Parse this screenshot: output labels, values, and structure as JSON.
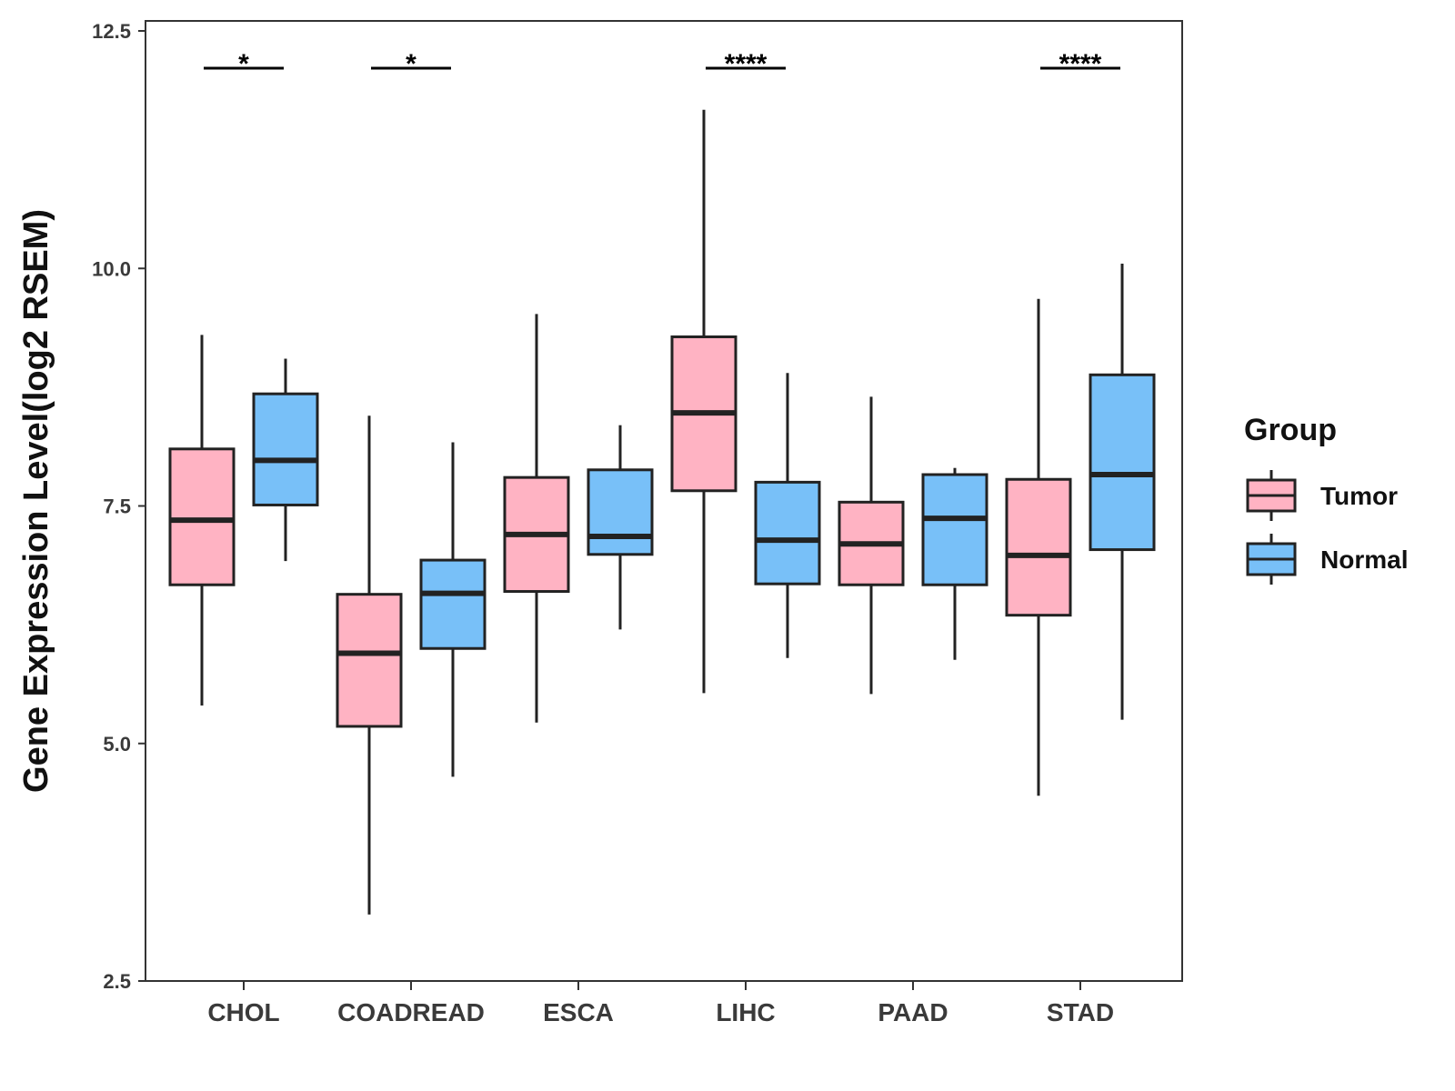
{
  "chart_data": {
    "type": "boxplot",
    "title": "",
    "xlabel": "",
    "ylabel": "Gene Expression Level(log2 RSEM)",
    "ylim": [
      2.5,
      12.5
    ],
    "yticks": [
      "2.5",
      "5.0",
      "7.5",
      "10.0",
      "12.5"
    ],
    "ytick_values": [
      2.5,
      5.0,
      7.5,
      10.0,
      12.5
    ],
    "categories": [
      "CHOL",
      "COADREAD",
      "ESCA",
      "LIHC",
      "PAAD",
      "STAD"
    ],
    "legend": {
      "title": "Group",
      "position": "right",
      "entries": [
        "Tumor",
        "Normal"
      ]
    },
    "series": [
      {
        "name": "Tumor",
        "color": "#ffb3c3",
        "boxes": [
          {
            "min": 5.4,
            "q1": 6.67,
            "median": 7.35,
            "q3": 8.1,
            "max": 9.3
          },
          {
            "min": 3.2,
            "q1": 5.18,
            "median": 5.95,
            "q3": 6.57,
            "max": 8.45
          },
          {
            "min": 5.22,
            "q1": 6.6,
            "median": 7.2,
            "q3": 7.8,
            "max": 9.52
          },
          {
            "min": 5.53,
            "q1": 7.66,
            "median": 8.48,
            "q3": 9.28,
            "max": 11.67
          },
          {
            "min": 5.52,
            "q1": 6.67,
            "median": 7.1,
            "q3": 7.54,
            "max": 8.65
          },
          {
            "min": 4.45,
            "q1": 6.35,
            "median": 6.98,
            "q3": 7.78,
            "max": 9.68
          }
        ]
      },
      {
        "name": "Normal",
        "color": "#78c0f8",
        "boxes": [
          {
            "min": 6.92,
            "q1": 7.51,
            "median": 7.98,
            "q3": 8.68,
            "max": 9.05
          },
          {
            "min": 4.65,
            "q1": 6.0,
            "median": 6.58,
            "q3": 6.93,
            "max": 8.17
          },
          {
            "min": 6.2,
            "q1": 6.99,
            "median": 7.18,
            "q3": 7.88,
            "max": 8.35
          },
          {
            "min": 5.9,
            "q1": 6.68,
            "median": 7.14,
            "q3": 7.75,
            "max": 8.9
          },
          {
            "min": 5.88,
            "q1": 6.67,
            "median": 7.37,
            "q3": 7.83,
            "max": 7.9
          },
          {
            "min": 5.25,
            "q1": 7.04,
            "median": 7.83,
            "q3": 8.88,
            "max": 10.05
          }
        ]
      }
    ],
    "significance": [
      "*",
      "*",
      "",
      "****",
      "",
      "****"
    ]
  }
}
